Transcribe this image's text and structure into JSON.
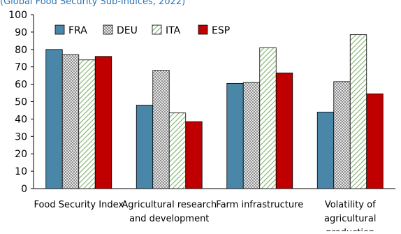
{
  "header": {
    "title_fragment": "(Global Food Security Sub-Indices, 2022)"
  },
  "chart_data": {
    "type": "bar",
    "categories": [
      [
        "Food Security Index"
      ],
      [
        "Agricultural research",
        "and development"
      ],
      [
        "Farm infrastructure"
      ],
      [
        "Volatility of",
        "agricultural",
        "production"
      ]
    ],
    "series": [
      {
        "name": "FRA",
        "values": [
          80,
          48,
          60.5,
          44
        ],
        "color": "#4a86a8",
        "pattern": "solid"
      },
      {
        "name": "DEU",
        "values": [
          77,
          68,
          61,
          61.5
        ],
        "color": "#bfbfbf",
        "pattern": "crosshatch"
      },
      {
        "name": "ITA",
        "values": [
          74,
          43.5,
          81,
          88.5
        ],
        "color": "#7fb16a",
        "pattern": "diagonal"
      },
      {
        "name": "ESP",
        "values": [
          76,
          38.5,
          66.5,
          54.5
        ],
        "color": "#c00000",
        "pattern": "solid"
      }
    ],
    "ylim": [
      0,
      100
    ],
    "yticks": [
      0,
      10,
      20,
      30,
      40,
      50,
      60,
      70,
      80,
      90,
      100
    ],
    "xlabel": "",
    "ylabel": "",
    "legend": "top-left",
    "grid": false
  }
}
